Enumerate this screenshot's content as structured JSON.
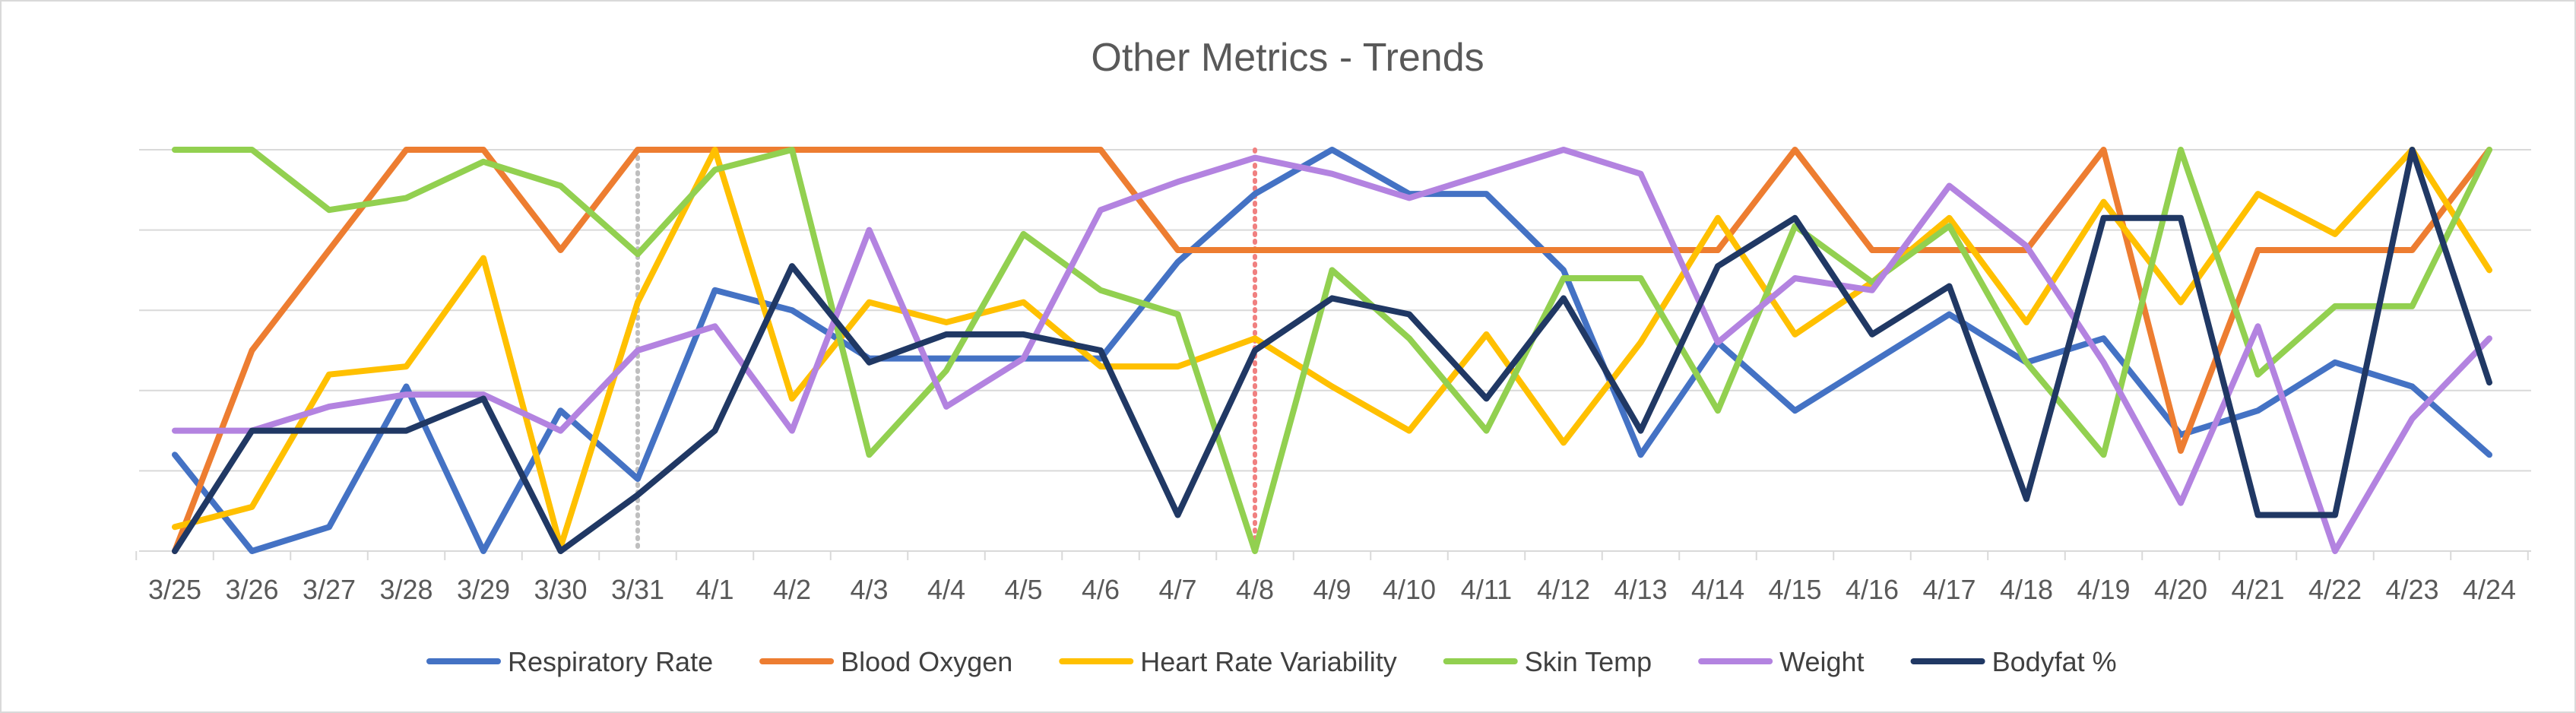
{
  "chart_data": {
    "type": "line",
    "title": "Other Metrics - Trends",
    "xlabel": "",
    "ylabel": "",
    "ylim": [
      0,
      5
    ],
    "y_gridlines": [
      1,
      2,
      3,
      4,
      5
    ],
    "grid": true,
    "legend_position": "bottom",
    "categories": [
      "3/25",
      "3/26",
      "3/27",
      "3/28",
      "3/29",
      "3/30",
      "3/31",
      "4/1",
      "4/2",
      "4/3",
      "4/4",
      "4/5",
      "4/6",
      "4/7",
      "4/8",
      "4/9",
      "4/10",
      "4/11",
      "4/12",
      "4/13",
      "4/14",
      "4/15",
      "4/16",
      "4/17",
      "4/18",
      "4/19",
      "4/20",
      "4/21",
      "4/22",
      "4/23",
      "4/24"
    ],
    "markers": [
      {
        "category": "3/31",
        "color": "#BFBFBF",
        "style": "dotted"
      },
      {
        "category": "4/8",
        "color": "#F08080",
        "style": "dotted"
      }
    ],
    "series": [
      {
        "name": "Respiratory Rate",
        "color": "#4472C4",
        "values": [
          1.2,
          0,
          0.3,
          2.05,
          0,
          1.75,
          0.9,
          3.25,
          3,
          2.4,
          2.4,
          2.4,
          2.4,
          3.6,
          4.45,
          5,
          4.45,
          4.45,
          3.5,
          1.2,
          2.6,
          1.75,
          2.35,
          2.95,
          2.35,
          2.65,
          1.45,
          1.75,
          2.35,
          2.05,
          1.2
        ]
      },
      {
        "name": "Blood Oxygen",
        "color": "#ED7D31",
        "values": [
          0,
          2.5,
          3.75,
          5,
          5,
          3.75,
          5,
          5,
          5,
          5,
          5,
          5,
          5,
          3.75,
          3.75,
          3.75,
          3.75,
          3.75,
          3.75,
          3.75,
          3.75,
          5,
          3.75,
          3.75,
          3.75,
          5,
          1.25,
          3.75,
          3.75,
          3.75,
          5
        ]
      },
      {
        "name": "Heart Rate Variability",
        "color": "#FFC000",
        "values": [
          0.3,
          0.55,
          2.2,
          2.3,
          3.65,
          0.05,
          3.1,
          5,
          1.9,
          3.1,
          2.85,
          3.1,
          2.3,
          2.3,
          2.65,
          2.05,
          1.5,
          2.7,
          1.35,
          2.6,
          4.15,
          2.7,
          3.35,
          4.15,
          2.85,
          4.35,
          3.1,
          4.45,
          3.95,
          5,
          3.5
        ]
      },
      {
        "name": "Skin Temp",
        "color": "#92D050",
        "values": [
          5,
          5,
          4.25,
          4.4,
          4.85,
          4.55,
          3.7,
          4.75,
          5,
          1.2,
          2.25,
          3.95,
          3.25,
          2.95,
          0,
          3.5,
          2.65,
          1.5,
          3.4,
          3.4,
          1.75,
          4.05,
          3.35,
          4.05,
          2.35,
          1.2,
          5,
          2.2,
          3.05,
          3.05,
          5
        ]
      },
      {
        "name": "Weight",
        "color": "#B383E0",
        "values": [
          1.5,
          1.5,
          1.8,
          1.95,
          1.95,
          1.5,
          2.5,
          2.8,
          1.5,
          4,
          1.8,
          2.4,
          4.25,
          4.6,
          4.9,
          4.7,
          4.4,
          4.7,
          5,
          4.7,
          2.6,
          3.4,
          3.25,
          4.55,
          3.8,
          2.35,
          0.6,
          2.8,
          0,
          1.65,
          2.65
        ]
      },
      {
        "name": "Bodyfat %",
        "color": "#203864",
        "values": [
          0,
          1.5,
          1.5,
          1.5,
          1.9,
          0,
          0.7,
          1.5,
          3.55,
          2.35,
          2.7,
          2.7,
          2.5,
          0.45,
          2.5,
          3.15,
          2.95,
          1.9,
          3.15,
          1.5,
          3.55,
          4.15,
          2.7,
          3.3,
          0.65,
          4.15,
          4.15,
          0.45,
          0.45,
          5,
          2.1
        ]
      }
    ]
  }
}
